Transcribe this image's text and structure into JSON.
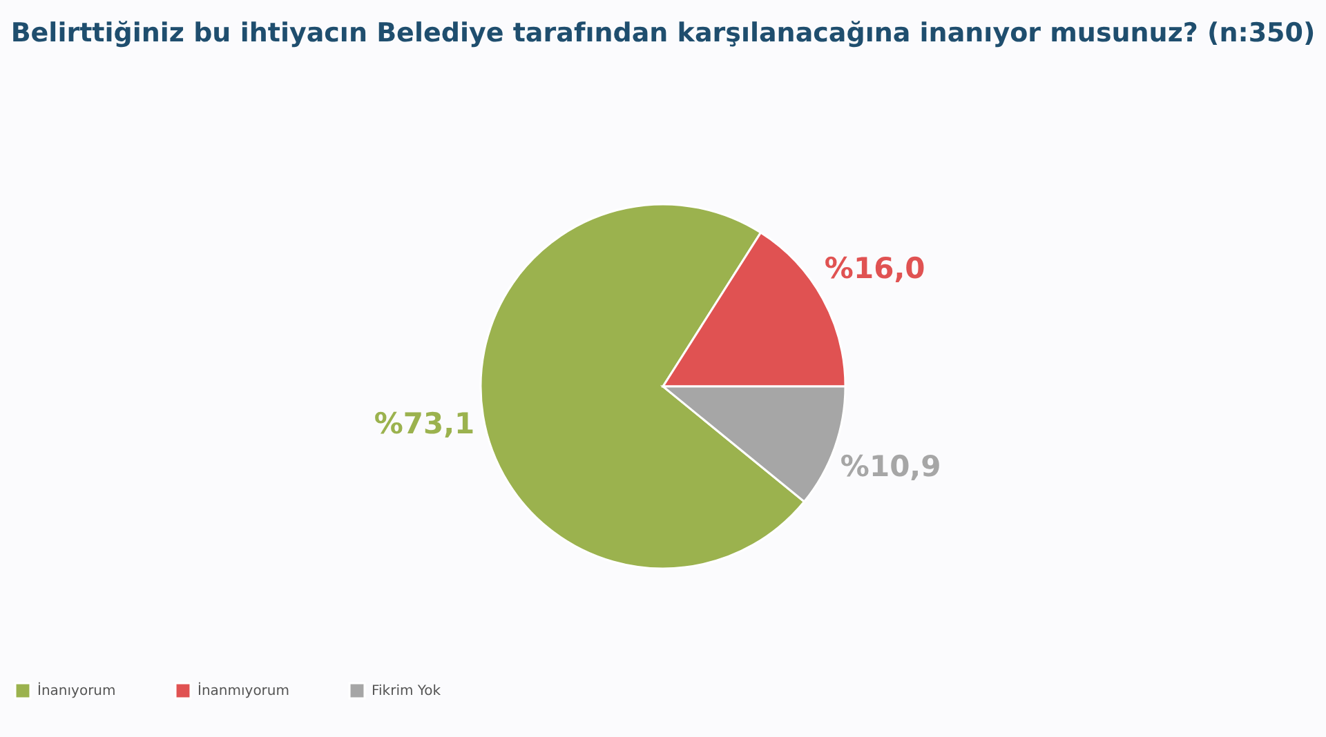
{
  "chart_data": {
    "type": "pie",
    "title": "Belirttiğiniz bu ihtiyacın Belediye tarafından karşılanacağına inanıyor musunuz? (n:350)",
    "categories": [
      "İnanıyorum",
      "İnanmıyorum",
      "Fikrim Yok"
    ],
    "values": [
      73.1,
      16.0,
      10.9
    ],
    "colors": [
      "#9bb24e",
      "#e05252",
      "#a6a6a6"
    ],
    "value_labels": [
      "%73,1",
      "%16,0",
      "%10,9"
    ],
    "legend": "bottom"
  }
}
